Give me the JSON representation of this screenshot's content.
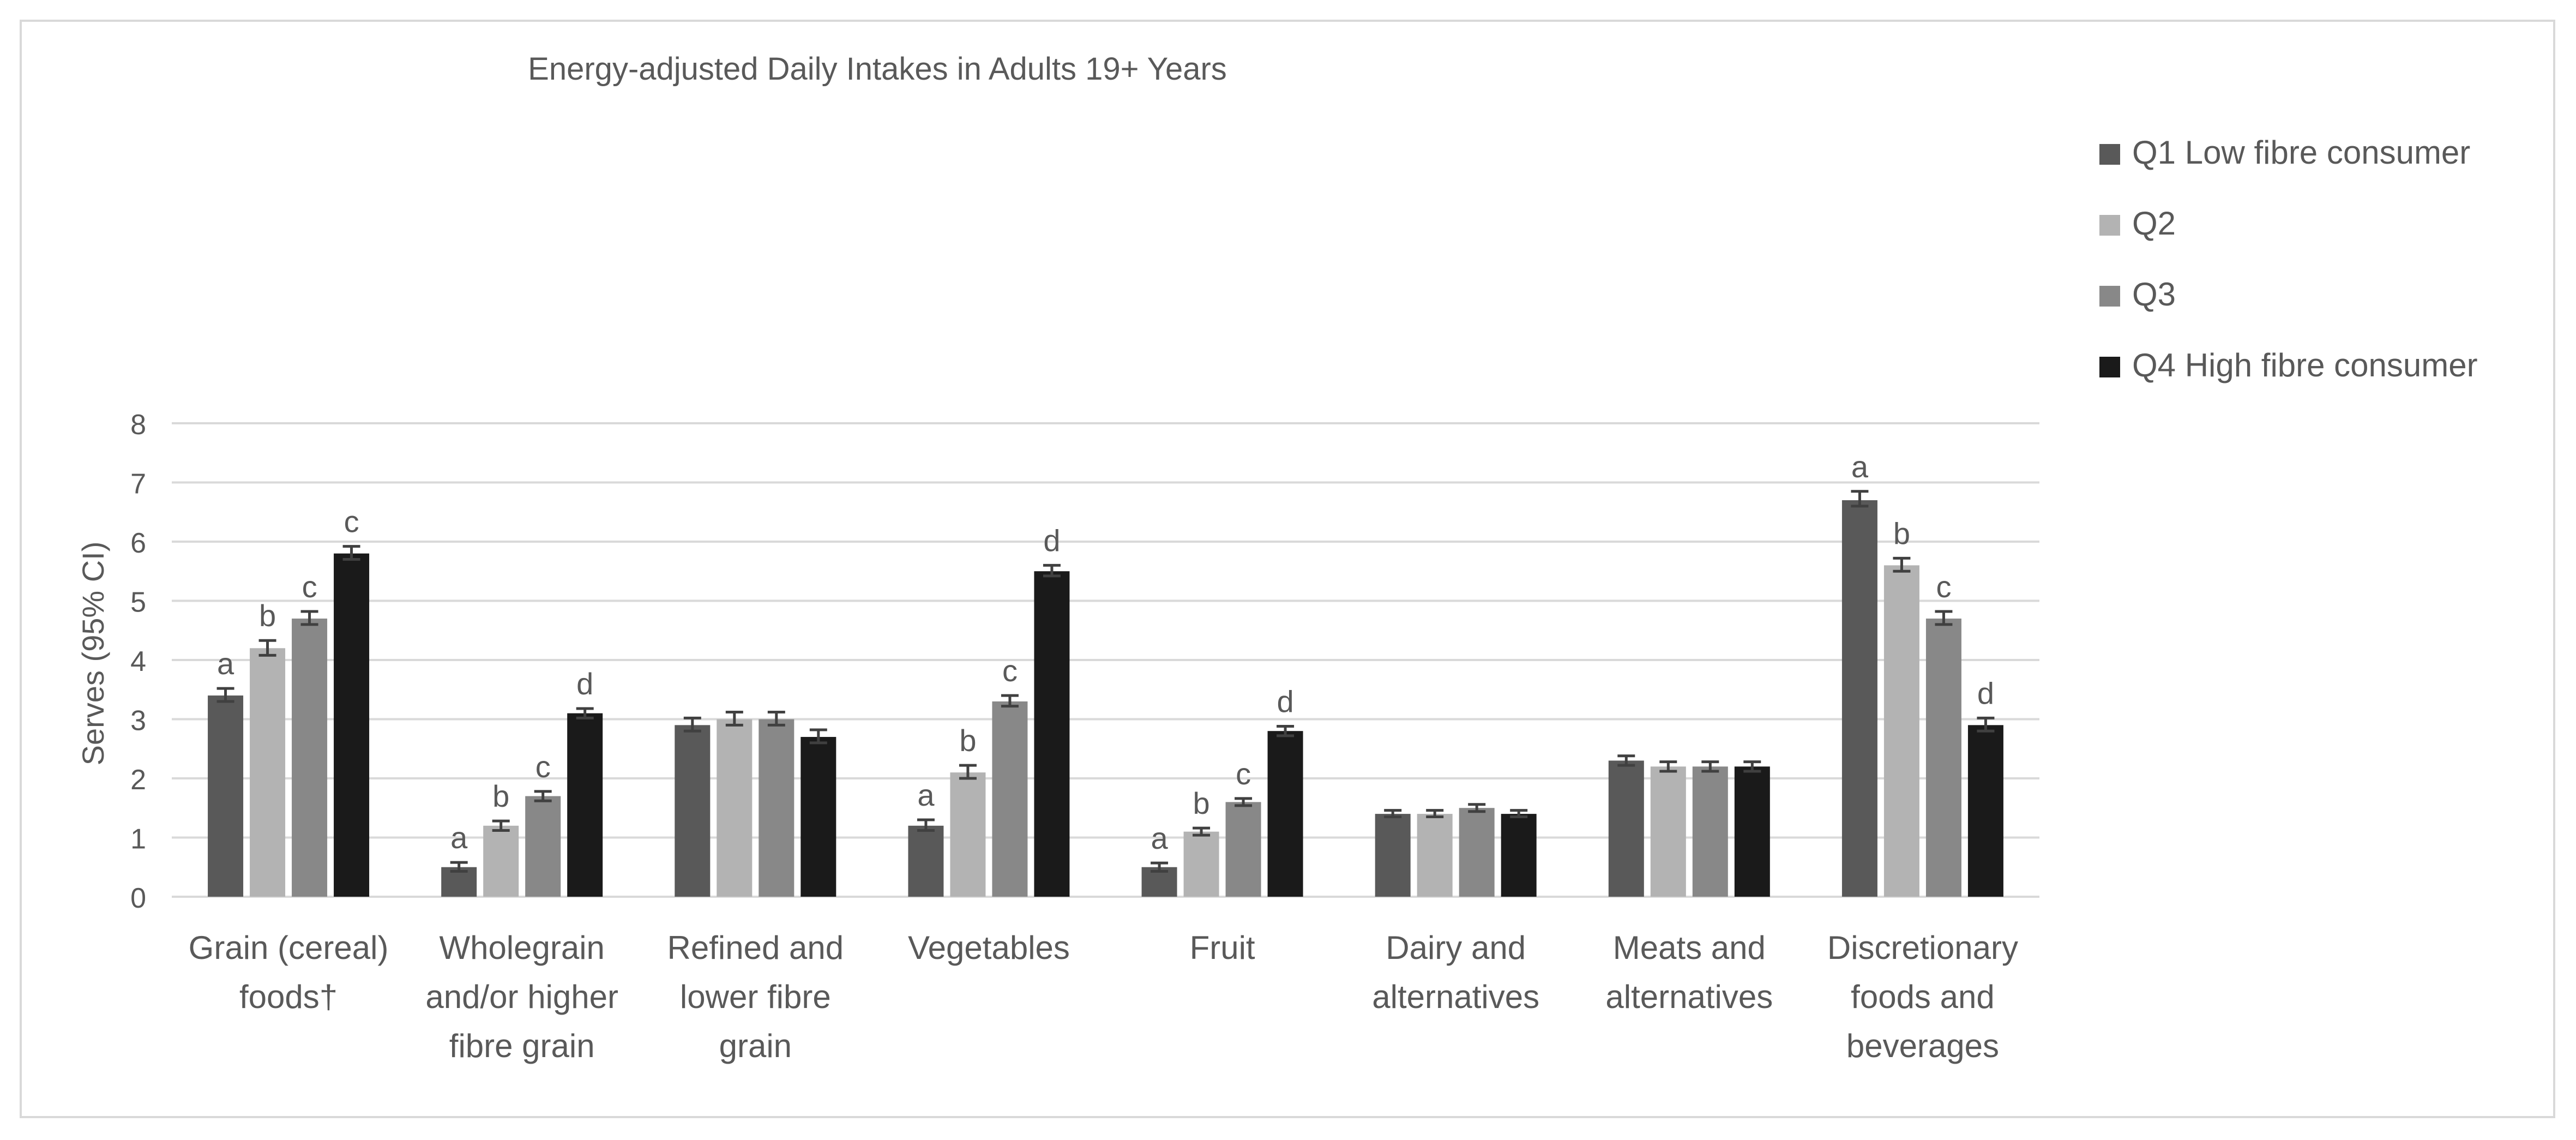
{
  "chart_data": {
    "type": "bar",
    "title": "Energy-adjusted Daily Intakes in Adults 19+ Years",
    "xlabel": "",
    "ylabel": "Serves (95% CI)",
    "ylim": [
      0,
      8
    ],
    "yticks": [
      "0",
      "1",
      "2",
      "3",
      "4",
      "5",
      "6",
      "7",
      "8"
    ],
    "grid": true,
    "legend_position": "right",
    "colors": [
      "#595959",
      "#b3b3b3",
      "#888888",
      "#1a1a1a"
    ],
    "categories": [
      [
        "Grain (cereal)",
        "foods†"
      ],
      [
        "Wholegrain",
        "and/or higher",
        "fibre grain"
      ],
      [
        "Refined and",
        "lower fibre",
        "grain"
      ],
      [
        "Vegetables"
      ],
      [
        "Fruit"
      ],
      [
        "Dairy and",
        "alternatives"
      ],
      [
        "Meats and",
        "alternatives"
      ],
      [
        "Discretionary",
        "foods and",
        "beverages"
      ]
    ],
    "series": [
      {
        "name": "Q1 Low fibre consumer",
        "values": [
          3.4,
          0.5,
          2.9,
          1.2,
          0.5,
          1.4,
          2.3,
          6.7
        ],
        "ci_low": [
          3.3,
          0.43,
          2.8,
          1.12,
          0.43,
          1.35,
          2.22,
          6.6
        ],
        "ci_high": [
          3.52,
          0.58,
          3.02,
          1.3,
          0.57,
          1.46,
          2.38,
          6.85
        ],
        "labels": [
          "a",
          "a",
          "",
          "a",
          "a",
          "",
          "",
          "a"
        ]
      },
      {
        "name": "Q2",
        "values": [
          4.2,
          1.2,
          3.0,
          2.1,
          1.1,
          1.4,
          2.2,
          5.6
        ],
        "ci_low": [
          4.08,
          1.12,
          2.9,
          2.0,
          1.04,
          1.35,
          2.12,
          5.5
        ],
        "ci_high": [
          4.33,
          1.28,
          3.12,
          2.22,
          1.16,
          1.46,
          2.28,
          5.72
        ],
        "labels": [
          "b",
          "b",
          "",
          "b",
          "b",
          "",
          "",
          "b"
        ]
      },
      {
        "name": "Q3",
        "values": [
          4.7,
          1.7,
          3.0,
          3.3,
          1.6,
          1.5,
          2.2,
          4.7
        ],
        "ci_low": [
          4.6,
          1.62,
          2.9,
          3.22,
          1.54,
          1.44,
          2.12,
          4.6
        ],
        "ci_high": [
          4.82,
          1.78,
          3.12,
          3.4,
          1.66,
          1.56,
          2.28,
          4.82
        ],
        "labels": [
          "c",
          "c",
          "",
          "c",
          "c",
          "",
          "",
          "c"
        ]
      },
      {
        "name": "Q4 High fibre consumer",
        "values": [
          5.8,
          3.1,
          2.7,
          5.5,
          2.8,
          1.4,
          2.2,
          2.9
        ],
        "ci_low": [
          5.7,
          3.02,
          2.6,
          5.42,
          2.72,
          1.35,
          2.12,
          2.8
        ],
        "ci_high": [
          5.92,
          3.18,
          2.82,
          5.6,
          2.88,
          1.46,
          2.28,
          3.02
        ],
        "labels": [
          "c",
          "d",
          "",
          "d",
          "d",
          "",
          "",
          "d"
        ]
      }
    ]
  }
}
